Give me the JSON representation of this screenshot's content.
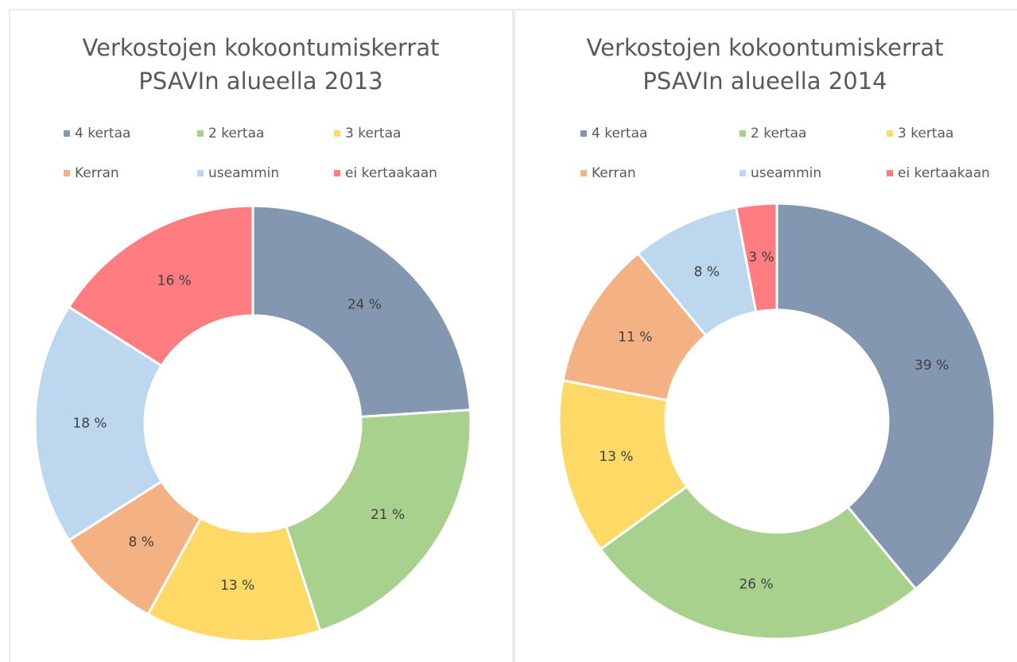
{
  "chart_data": [
    {
      "type": "donut",
      "title": [
        "Verkostojen kokoontumiskerrat",
        "PSAVIn alueella 2013"
      ],
      "categories": [
        "4 kertaa",
        "2 kertaa",
        "3 kertaa",
        "Kerran",
        "useammin",
        "ei kertaakaan"
      ],
      "values": [
        24,
        21,
        13,
        8,
        18,
        16
      ],
      "value_labels": [
        "24 %",
        "21 %",
        "13 %",
        "8 %",
        "18 %",
        "16 %"
      ],
      "colors": [
        "#8497b0",
        "#a9d18e",
        "#ffd966",
        "#f4b183",
        "#bdd7ee",
        "#ff7c80"
      ],
      "legend": "top"
    },
    {
      "type": "donut",
      "title": [
        "Verkostojen kokoontumiskerrat",
        "PSAVIn alueella 2014"
      ],
      "categories": [
        "4 kertaa",
        "2 kertaa",
        "3 kertaa",
        "Kerran",
        "useammin",
        "ei kertaakaan"
      ],
      "values": [
        39,
        26,
        13,
        11,
        8,
        3
      ],
      "value_labels": [
        "39 %",
        "26 %",
        "13 %",
        "11 %",
        "8 %",
        "3 %"
      ],
      "colors": [
        "#8497b0",
        "#a9d18e",
        "#ffd966",
        "#f4b183",
        "#bdd7ee",
        "#ff7c80"
      ],
      "legend": "top"
    }
  ]
}
